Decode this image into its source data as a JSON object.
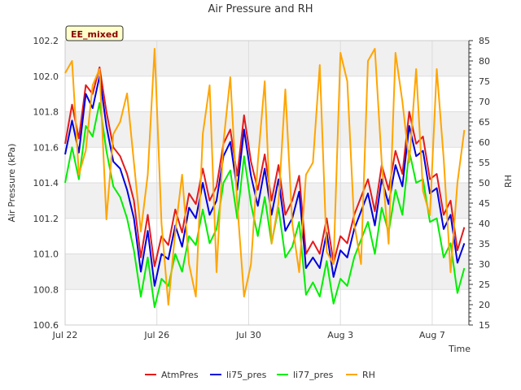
{
  "chart_data": {
    "type": "line",
    "title": "Air Pressure and RH",
    "badge": "EE_mixed",
    "xlabel": "Time",
    "ylabel": "Air Pressure (kPa)",
    "y2label": "RH",
    "x_ticks": [
      {
        "day": 0,
        "label": "Jul 22"
      },
      {
        "day": 4,
        "label": "Jul 26"
      },
      {
        "day": 8,
        "label": "Jul 30"
      },
      {
        "day": 12,
        "label": "Aug 3"
      },
      {
        "day": 16,
        "label": "Aug 7"
      }
    ],
    "xlim_days": [
      0,
      17.6
    ],
    "ylim": [
      100.6,
      102.2
    ],
    "y_ticks": [
      "100.6",
      "100.8",
      "101.0",
      "101.2",
      "101.4",
      "101.6",
      "101.8",
      "102.0",
      "102.2"
    ],
    "y2lim": [
      15,
      85
    ],
    "y2_ticks": [
      "15",
      "20",
      "25",
      "30",
      "35",
      "40",
      "45",
      "50",
      "55",
      "60",
      "65",
      "70",
      "75",
      "80",
      "85"
    ],
    "grid": true,
    "legend_position": "bottom",
    "series": [
      {
        "name": "AtmPres",
        "color": "#e41a1c",
        "axis": "left",
        "x": [
          0,
          0.3,
          0.6,
          0.9,
          1.2,
          1.5,
          1.8,
          2.1,
          2.4,
          2.7,
          3.0,
          3.3,
          3.6,
          3.9,
          4.2,
          4.5,
          4.8,
          5.1,
          5.4,
          5.7,
          6.0,
          6.3,
          6.6,
          6.9,
          7.2,
          7.5,
          7.8,
          8.1,
          8.4,
          8.7,
          9.0,
          9.3,
          9.6,
          9.9,
          10.2,
          10.5,
          10.8,
          11.1,
          11.4,
          11.7,
          12.0,
          12.3,
          12.6,
          12.9,
          13.2,
          13.5,
          13.8,
          14.1,
          14.4,
          14.7,
          15.0,
          15.3,
          15.6,
          15.9,
          16.2,
          16.5,
          16.8,
          17.1,
          17.4
        ],
        "y": [
          101.62,
          101.84,
          101.65,
          101.95,
          101.9,
          102.05,
          101.8,
          101.6,
          101.55,
          101.45,
          101.3,
          100.98,
          101.22,
          100.93,
          101.1,
          101.05,
          101.25,
          101.12,
          101.34,
          101.28,
          101.48,
          101.3,
          101.38,
          101.62,
          101.7,
          101.44,
          101.78,
          101.52,
          101.36,
          101.56,
          101.3,
          101.5,
          101.22,
          101.3,
          101.44,
          101.0,
          101.07,
          101.0,
          101.2,
          100.95,
          101.1,
          101.06,
          101.22,
          101.32,
          101.42,
          101.24,
          101.5,
          101.36,
          101.58,
          101.45,
          101.8,
          101.62,
          101.66,
          101.42,
          101.45,
          101.22,
          101.3,
          101.02,
          101.15
        ]
      },
      {
        "name": "li75_pres",
        "color": "#0000dd",
        "axis": "left",
        "x": [
          0,
          0.3,
          0.6,
          0.9,
          1.2,
          1.5,
          1.8,
          2.1,
          2.4,
          2.7,
          3.0,
          3.3,
          3.6,
          3.9,
          4.2,
          4.5,
          4.8,
          5.1,
          5.4,
          5.7,
          6.0,
          6.3,
          6.6,
          6.9,
          7.2,
          7.5,
          7.8,
          8.1,
          8.4,
          8.7,
          9.0,
          9.3,
          9.6,
          9.9,
          10.2,
          10.5,
          10.8,
          11.1,
          11.4,
          11.7,
          12.0,
          12.3,
          12.6,
          12.9,
          13.2,
          13.5,
          13.8,
          14.1,
          14.4,
          14.7,
          15.0,
          15.3,
          15.6,
          15.9,
          16.2,
          16.5,
          16.8,
          17.1,
          17.4
        ],
        "y": [
          101.56,
          101.75,
          101.57,
          101.9,
          101.82,
          102.0,
          101.72,
          101.52,
          101.48,
          101.36,
          101.2,
          100.9,
          101.13,
          100.82,
          101.0,
          100.97,
          101.16,
          101.04,
          101.26,
          101.2,
          101.4,
          101.22,
          101.3,
          101.55,
          101.63,
          101.36,
          101.7,
          101.44,
          101.27,
          101.48,
          101.22,
          101.42,
          101.13,
          101.2,
          101.35,
          100.92,
          100.98,
          100.92,
          101.12,
          100.87,
          101.02,
          100.98,
          101.14,
          101.24,
          101.34,
          101.16,
          101.42,
          101.28,
          101.5,
          101.38,
          101.72,
          101.55,
          101.58,
          101.34,
          101.37,
          101.14,
          101.22,
          100.95,
          101.06
        ]
      },
      {
        "name": "li77_pres",
        "color": "#00ee00",
        "axis": "left",
        "x": [
          0,
          0.3,
          0.6,
          0.9,
          1.2,
          1.5,
          1.8,
          2.1,
          2.4,
          2.7,
          3.0,
          3.3,
          3.6,
          3.9,
          4.2,
          4.5,
          4.8,
          5.1,
          5.4,
          5.7,
          6.0,
          6.3,
          6.6,
          6.9,
          7.2,
          7.5,
          7.8,
          8.1,
          8.4,
          8.7,
          9.0,
          9.3,
          9.6,
          9.9,
          10.2,
          10.5,
          10.8,
          11.1,
          11.4,
          11.7,
          12.0,
          12.3,
          12.6,
          12.9,
          13.2,
          13.5,
          13.8,
          14.1,
          14.4,
          14.7,
          15.0,
          15.3,
          15.6,
          15.9,
          16.2,
          16.5,
          16.8,
          17.1,
          17.4
        ],
        "y": [
          101.4,
          101.6,
          101.42,
          101.72,
          101.66,
          101.85,
          101.58,
          101.38,
          101.32,
          101.2,
          101.02,
          100.76,
          100.98,
          100.7,
          100.86,
          100.82,
          101.0,
          100.9,
          101.1,
          101.05,
          101.25,
          101.06,
          101.14,
          101.4,
          101.47,
          101.2,
          101.55,
          101.28,
          101.1,
          101.32,
          101.06,
          101.26,
          100.98,
          101.04,
          101.18,
          100.77,
          100.84,
          100.76,
          100.96,
          100.72,
          100.86,
          100.82,
          100.98,
          101.08,
          101.18,
          101.0,
          101.26,
          101.12,
          101.36,
          101.22,
          101.58,
          101.4,
          101.42,
          101.18,
          101.2,
          100.98,
          101.06,
          100.78,
          100.92
        ]
      },
      {
        "name": "RH",
        "color": "#ffa500",
        "axis": "right",
        "x": [
          0,
          0.3,
          0.6,
          0.9,
          1.2,
          1.5,
          1.8,
          2.1,
          2.4,
          2.7,
          3.0,
          3.3,
          3.6,
          3.9,
          4.2,
          4.5,
          4.8,
          5.1,
          5.4,
          5.7,
          6.0,
          6.3,
          6.6,
          6.9,
          7.2,
          7.5,
          7.8,
          8.1,
          8.4,
          8.7,
          9.0,
          9.3,
          9.6,
          9.9,
          10.2,
          10.5,
          10.8,
          11.1,
          11.4,
          11.7,
          12.0,
          12.3,
          12.6,
          12.9,
          13.2,
          13.5,
          13.8,
          14.1,
          14.4,
          14.7,
          15.0,
          15.3,
          15.6,
          15.9,
          16.2,
          16.5,
          16.8,
          17.1,
          17.4
        ],
        "y": [
          77,
          80,
          52,
          58,
          74,
          78,
          41,
          62,
          65,
          72,
          55,
          38,
          52,
          83,
          40,
          20,
          38,
          52,
          30,
          22,
          62,
          74,
          28,
          60,
          76,
          45,
          22,
          30,
          55,
          75,
          35,
          45,
          73,
          40,
          28,
          52,
          55,
          79,
          33,
          30,
          82,
          75,
          40,
          30,
          80,
          83,
          55,
          35,
          82,
          70,
          55,
          78,
          48,
          42,
          78,
          56,
          28,
          50,
          63
        ]
      }
    ]
  }
}
